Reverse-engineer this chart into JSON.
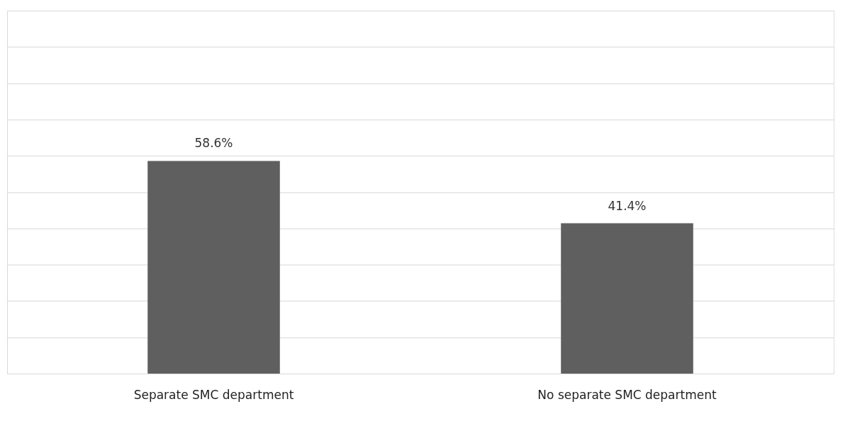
{
  "chart_data": {
    "type": "bar",
    "categories": [
      "Separate SMC department",
      "No separate SMC department"
    ],
    "values": [
      58.6,
      41.4
    ],
    "value_labels": [
      "58.6%",
      "41.4%"
    ],
    "color": "#5f5f5f",
    "ylim": [
      0,
      100
    ],
    "yticks": [
      {
        "value": 0,
        "label": null
      },
      {
        "value": 10,
        "label": null
      },
      {
        "value": 20,
        "label": null
      },
      {
        "value": 30,
        "label": null
      },
      {
        "value": 40,
        "label": null
      },
      {
        "value": 50,
        "label": null
      },
      {
        "value": 60,
        "label": null
      },
      {
        "value": 70,
        "label": null
      },
      {
        "value": 80,
        "label": null
      },
      {
        "value": 90,
        "label": null
      },
      {
        "value": 100,
        "label": null
      }
    ],
    "grid": "y",
    "tick_labels": "x"
  }
}
